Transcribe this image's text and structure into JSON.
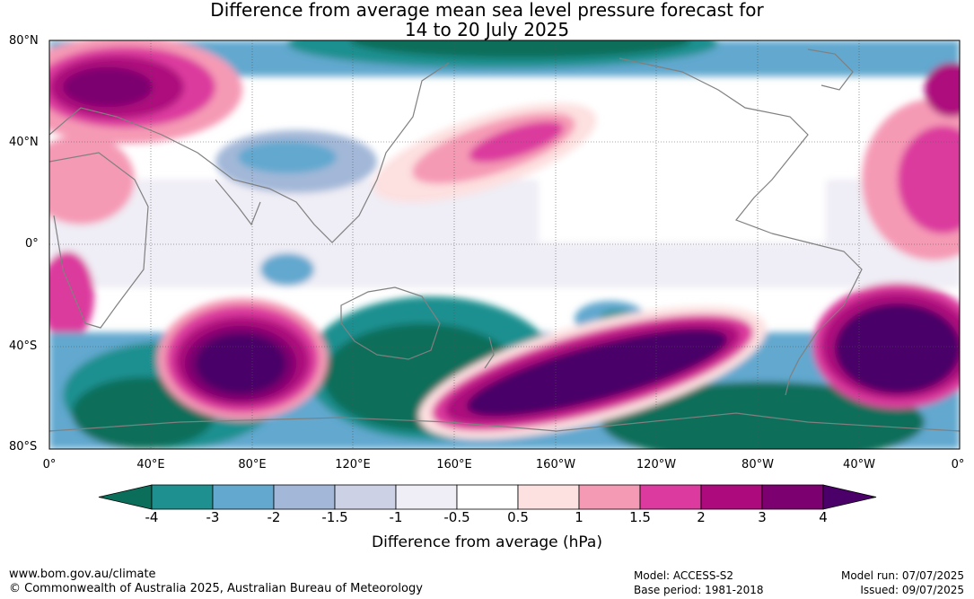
{
  "title_line1": "Difference from average mean sea level pressure forecast for",
  "title_line2": "14 to 20 July 2025",
  "y_ticks": [
    "80°N",
    "40°N",
    "0°",
    "40°S",
    "80°S"
  ],
  "x_ticks": [
    "0°",
    "40°E",
    "80°E",
    "120°E",
    "160°E",
    "160°W",
    "120°W",
    "80°W",
    "40°W",
    "0°"
  ],
  "colorbar": {
    "ticks": [
      "-4",
      "-3",
      "-2",
      "-1.5",
      "-1",
      "-0.5",
      "0.5",
      "1",
      "1.5",
      "2",
      "3",
      "4"
    ],
    "colors": [
      "#0a6e5a",
      "#1e9090",
      "#62a8cf",
      "#a3b8d8",
      "#cdd1e6",
      "#efedf5",
      "#ffffff",
      "#fde0e0",
      "#f59ab5",
      "#dc3a9e",
      "#ad0a7d",
      "#7d0070",
      "#4a0068"
    ],
    "label": "Difference from average (hPa)"
  },
  "footer": {
    "url": "www.bom.gov.au/climate",
    "copyright": "© Commonwealth of Australia 2025, Australian Bureau of Meteorology",
    "model": "Model: ACCESS-S2",
    "base_period": "Base period: 1981-2018",
    "model_run": "Model run: 07/07/2025",
    "issued": "Issued: 09/07/2025"
  }
}
